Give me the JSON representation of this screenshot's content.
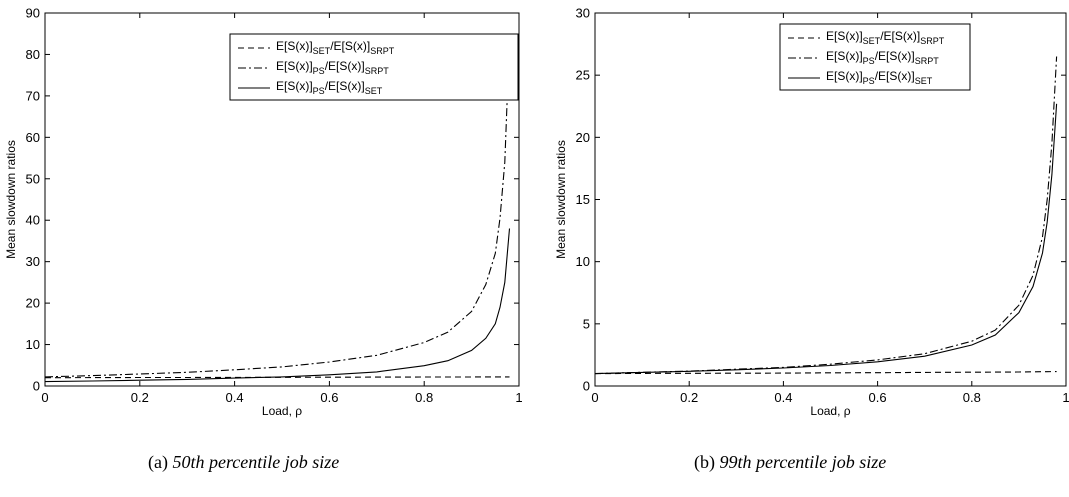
{
  "captions": [
    {
      "label": "(a)",
      "text": "50th percentile job size"
    },
    {
      "label": "(b)",
      "text": "99th percentile job size"
    }
  ],
  "chart_data": [
    {
      "type": "line",
      "xlabel": "Load, ρ",
      "ylabel": "Mean slowdown ratios",
      "xlim": [
        0,
        1
      ],
      "ylim": [
        0,
        90
      ],
      "xticks": [
        "0",
        "0.2",
        "0.4",
        "0.6",
        "0.8",
        "1"
      ],
      "yticks": [
        "0",
        "10",
        "20",
        "30",
        "40",
        "50",
        "60",
        "70",
        "80",
        "90"
      ],
      "grid": false,
      "legend_position": "top-right",
      "x": [
        0,
        0.1,
        0.2,
        0.3,
        0.4,
        0.5,
        0.6,
        0.7,
        0.8,
        0.85,
        0.9,
        0.93,
        0.95,
        0.96,
        0.97,
        0.98
      ],
      "series": [
        {
          "name": "E[S(x)]SET/E[S(x)]SRPT",
          "base": "E[S(x)]",
          "sub1": "SET",
          "mid": "/E[S(x)]",
          "sub2": "SRPT",
          "style": "dashed",
          "values": [
            2.0,
            2.02,
            2.04,
            2.06,
            2.08,
            2.1,
            2.12,
            2.14,
            2.16,
            2.17,
            2.18,
            2.19,
            2.19,
            2.2,
            2.2,
            2.2
          ]
        },
        {
          "name": "E[S(x)]PS/E[S(x)]SRPT",
          "base": "E[S(x)]",
          "sub1": "PS",
          "mid": "/E[S(x)]",
          "sub2": "SRPT",
          "style": "dashdot",
          "values": [
            2.2,
            2.5,
            2.9,
            3.3,
            3.9,
            4.6,
            5.8,
            7.4,
            10.5,
            13.0,
            18.0,
            24.5,
            32.0,
            40.5,
            54.0,
            84.0
          ]
        },
        {
          "name": "E[S(x)]PS/E[S(x)]SET",
          "base": "E[S(x)]",
          "sub1": "PS",
          "mid": "/E[S(x)]",
          "sub2": "SET",
          "style": "solid",
          "values": [
            1.05,
            1.2,
            1.4,
            1.6,
            1.9,
            2.2,
            2.7,
            3.4,
            4.9,
            6.1,
            8.6,
            11.5,
            15.0,
            19.0,
            25.0,
            38.0
          ]
        }
      ]
    },
    {
      "type": "line",
      "xlabel": "Load, ρ",
      "ylabel": "Mean slowdown ratios",
      "xlim": [
        0,
        1
      ],
      "ylim": [
        0,
        30
      ],
      "xticks": [
        "0",
        "0.2",
        "0.4",
        "0.6",
        "0.8",
        "1"
      ],
      "yticks": [
        "0",
        "5",
        "10",
        "15",
        "20",
        "25",
        "30"
      ],
      "grid": false,
      "legend_position": "top-right",
      "x": [
        0,
        0.1,
        0.2,
        0.3,
        0.4,
        0.5,
        0.6,
        0.7,
        0.8,
        0.85,
        0.9,
        0.93,
        0.95,
        0.96,
        0.97,
        0.98
      ],
      "series": [
        {
          "name": "E[S(x)]SET/E[S(x)]SRPT",
          "base": "E[S(x)]",
          "sub1": "SET",
          "mid": "/E[S(x)]",
          "sub2": "SRPT",
          "style": "dashed",
          "values": [
            1.0,
            1.01,
            1.02,
            1.03,
            1.04,
            1.06,
            1.07,
            1.09,
            1.11,
            1.12,
            1.13,
            1.14,
            1.15,
            1.15,
            1.16,
            1.16
          ]
        },
        {
          "name": "E[S(x)]PS/E[S(x)]SRPT",
          "base": "E[S(x)]",
          "sub1": "PS",
          "mid": "/E[S(x)]",
          "sub2": "SRPT",
          "style": "dashdot",
          "values": [
            1.0,
            1.1,
            1.2,
            1.35,
            1.5,
            1.75,
            2.1,
            2.6,
            3.6,
            4.5,
            6.5,
            8.9,
            12.0,
            15.0,
            19.5,
            26.5
          ]
        },
        {
          "name": "E[S(x)]PS/E[S(x)]SET",
          "base": "E[S(x)]",
          "sub1": "PS",
          "mid": "/E[S(x)]",
          "sub2": "SET",
          "style": "solid",
          "values": [
            1.0,
            1.09,
            1.18,
            1.3,
            1.45,
            1.65,
            1.95,
            2.4,
            3.3,
            4.1,
            5.9,
            8.0,
            10.7,
            13.2,
            17.0,
            22.7
          ]
        }
      ]
    }
  ]
}
